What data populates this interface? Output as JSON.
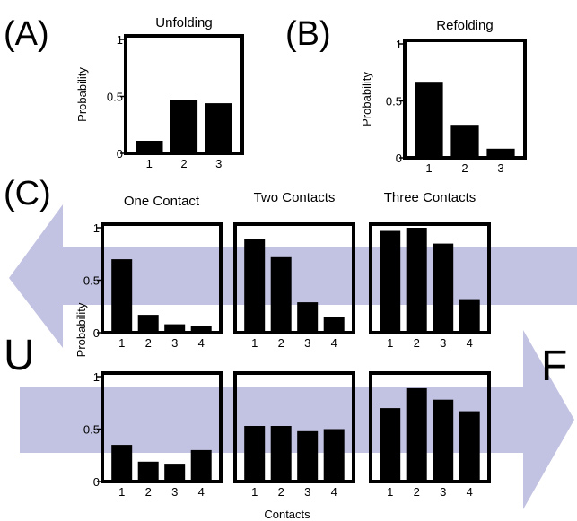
{
  "labels": {
    "a": "(A)",
    "b": "(B)",
    "c": "(C)",
    "u": "U",
    "f": "F"
  },
  "colors": {
    "bars": "#000000",
    "arrow": "#c2c2e2",
    "frame": "#000000"
  },
  "chart_data": [
    {
      "id": "A",
      "type": "bar",
      "title": "Unfolding",
      "ylabel": "Probability",
      "xlabel": "",
      "categories": [
        "1",
        "2",
        "3"
      ],
      "values": [
        0.11,
        0.47,
        0.44
      ],
      "ylim": [
        0,
        1
      ],
      "yticks": [
        {
          "v": 0,
          "t": "0"
        },
        {
          "v": 0.5,
          "t": "0.5"
        },
        {
          "v": 1,
          "t": "1"
        }
      ]
    },
    {
      "id": "B",
      "type": "bar",
      "title": "Refolding",
      "ylabel": "Probability",
      "xlabel": "",
      "categories": [
        "1",
        "2",
        "3"
      ],
      "values": [
        0.66,
        0.29,
        0.08
      ],
      "ylim": [
        0,
        1
      ],
      "yticks": [
        {
          "v": 0,
          "t": "0"
        },
        {
          "v": 0.5,
          "t": "0.5"
        },
        {
          "v": 1,
          "t": "1"
        }
      ]
    },
    {
      "id": "C-unfold-one",
      "type": "bar",
      "title": "One Contact",
      "ylabel": "",
      "xlabel": "",
      "categories": [
        "1",
        "2",
        "3",
        "4"
      ],
      "values": [
        0.7,
        0.17,
        0.08,
        0.06
      ],
      "ylim": [
        0,
        1
      ],
      "yticks": [
        {
          "v": 0,
          "t": "0"
        },
        {
          "v": 0.5,
          "t": "0.5"
        },
        {
          "v": 1,
          "t": "1"
        }
      ]
    },
    {
      "id": "C-unfold-two",
      "type": "bar",
      "title": "Two Contacts",
      "ylabel": "",
      "xlabel": "",
      "categories": [
        "1",
        "2",
        "3",
        "4"
      ],
      "values": [
        0.89,
        0.72,
        0.29,
        0.15
      ],
      "ylim": [
        0,
        1
      ],
      "yticks": []
    },
    {
      "id": "C-unfold-three",
      "type": "bar",
      "title": "Three Contacts",
      "ylabel": "",
      "xlabel": "",
      "categories": [
        "1",
        "2",
        "3",
        "4"
      ],
      "values": [
        0.97,
        1.0,
        0.85,
        0.32
      ],
      "ylim": [
        0,
        1
      ],
      "yticks": []
    },
    {
      "id": "C-refold-one",
      "type": "bar",
      "title": "",
      "ylabel": "",
      "xlabel": "",
      "categories": [
        "1",
        "2",
        "3",
        "4"
      ],
      "values": [
        0.35,
        0.19,
        0.17,
        0.3
      ],
      "ylim": [
        0,
        1
      ],
      "yticks": [
        {
          "v": 0,
          "t": "0"
        },
        {
          "v": 0.5,
          "t": "0.5"
        },
        {
          "v": 1,
          "t": "1"
        }
      ]
    },
    {
      "id": "C-refold-two",
      "type": "bar",
      "title": "",
      "ylabel": "",
      "xlabel": "Contacts",
      "categories": [
        "1",
        "2",
        "3",
        "4"
      ],
      "values": [
        0.53,
        0.53,
        0.48,
        0.5
      ],
      "ylim": [
        0,
        1
      ],
      "yticks": []
    },
    {
      "id": "C-refold-three",
      "type": "bar",
      "title": "",
      "ylabel": "",
      "xlabel": "",
      "categories": [
        "1",
        "2",
        "3",
        "4"
      ],
      "values": [
        0.7,
        0.89,
        0.78,
        0.67
      ],
      "ylim": [
        0,
        1
      ],
      "yticks": []
    }
  ],
  "c_ylabel": "Probability"
}
